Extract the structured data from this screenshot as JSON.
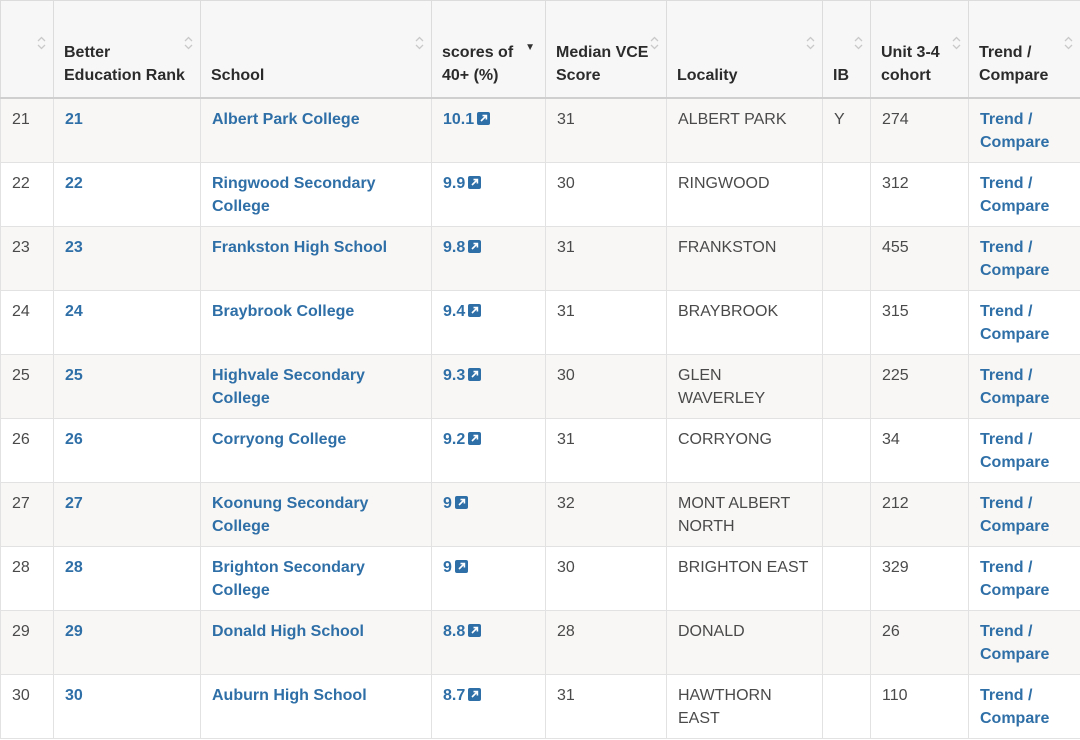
{
  "table": {
    "headers": [
      {
        "label": "",
        "sortable": true
      },
      {
        "label": "Better Education Rank",
        "sortable": true
      },
      {
        "label": "School",
        "sortable": true
      },
      {
        "label": "scores of 40+ (%)",
        "sortable": true,
        "active_sort": "descending"
      },
      {
        "label": "Median VCE Score",
        "sortable": true
      },
      {
        "label": "Locality",
        "sortable": true
      },
      {
        "label": "IB",
        "sortable": true
      },
      {
        "label": "Unit 3-4 cohort",
        "sortable": true
      },
      {
        "label": "Trend / Compare",
        "sortable": true
      }
    ],
    "rows": [
      {
        "num": "21",
        "rank": "21",
        "school": "Albert Park College",
        "score": "10.1",
        "median": "31",
        "locality": "ALBERT PARK",
        "ib": "Y",
        "cohort": "274",
        "trend": "Trend / Compare"
      },
      {
        "num": "22",
        "rank": "22",
        "school": "Ringwood Secondary College",
        "score": "9.9",
        "median": "30",
        "locality": "RINGWOOD",
        "ib": "",
        "cohort": "312",
        "trend": "Trend / Compare"
      },
      {
        "num": "23",
        "rank": "23",
        "school": "Frankston High School",
        "score": "9.8",
        "median": "31",
        "locality": "FRANKSTON",
        "ib": "",
        "cohort": "455",
        "trend": "Trend / Compare"
      },
      {
        "num": "24",
        "rank": "24",
        "school": "Braybrook College",
        "score": "9.4",
        "median": "31",
        "locality": "BRAYBROOK",
        "ib": "",
        "cohort": "315",
        "trend": "Trend / Compare"
      },
      {
        "num": "25",
        "rank": "25",
        "school": "Highvale Secondary College",
        "score": "9.3",
        "median": "30",
        "locality": "GLEN WAVERLEY",
        "ib": "",
        "cohort": "225",
        "trend": "Trend / Compare"
      },
      {
        "num": "26",
        "rank": "26",
        "school": "Corryong College",
        "score": "9.2",
        "median": "31",
        "locality": "CORRYONG",
        "ib": "",
        "cohort": "34",
        "trend": "Trend / Compare"
      },
      {
        "num": "27",
        "rank": "27",
        "school": "Koonung Secondary College",
        "score": "9",
        "median": "32",
        "locality": "MONT ALBERT NORTH",
        "ib": "",
        "cohort": "212",
        "trend": "Trend / Compare"
      },
      {
        "num": "28",
        "rank": "28",
        "school": "Brighton Secondary College",
        "score": "9",
        "median": "30",
        "locality": "BRIGHTON EAST",
        "ib": "",
        "cohort": "329",
        "trend": "Trend / Compare"
      },
      {
        "num": "29",
        "rank": "29",
        "school": "Donald High School",
        "score": "8.8",
        "median": "28",
        "locality": "DONALD",
        "ib": "",
        "cohort": "26",
        "trend": "Trend / Compare"
      },
      {
        "num": "30",
        "rank": "30",
        "school": "Auburn High School",
        "score": "8.7",
        "median": "31",
        "locality": "HAWTHORN EAST",
        "ib": "",
        "cohort": "110",
        "trend": "Trend / Compare"
      }
    ]
  },
  "icons": {
    "sort": "sort-arrows-icon",
    "sort_active": "sort-descending-icon",
    "score_link": "external-link-icon"
  },
  "colors": {
    "link": "#2f6fa7",
    "header_bg": "#f7f7f7",
    "row_alt_bg": "#f8f7f5"
  }
}
